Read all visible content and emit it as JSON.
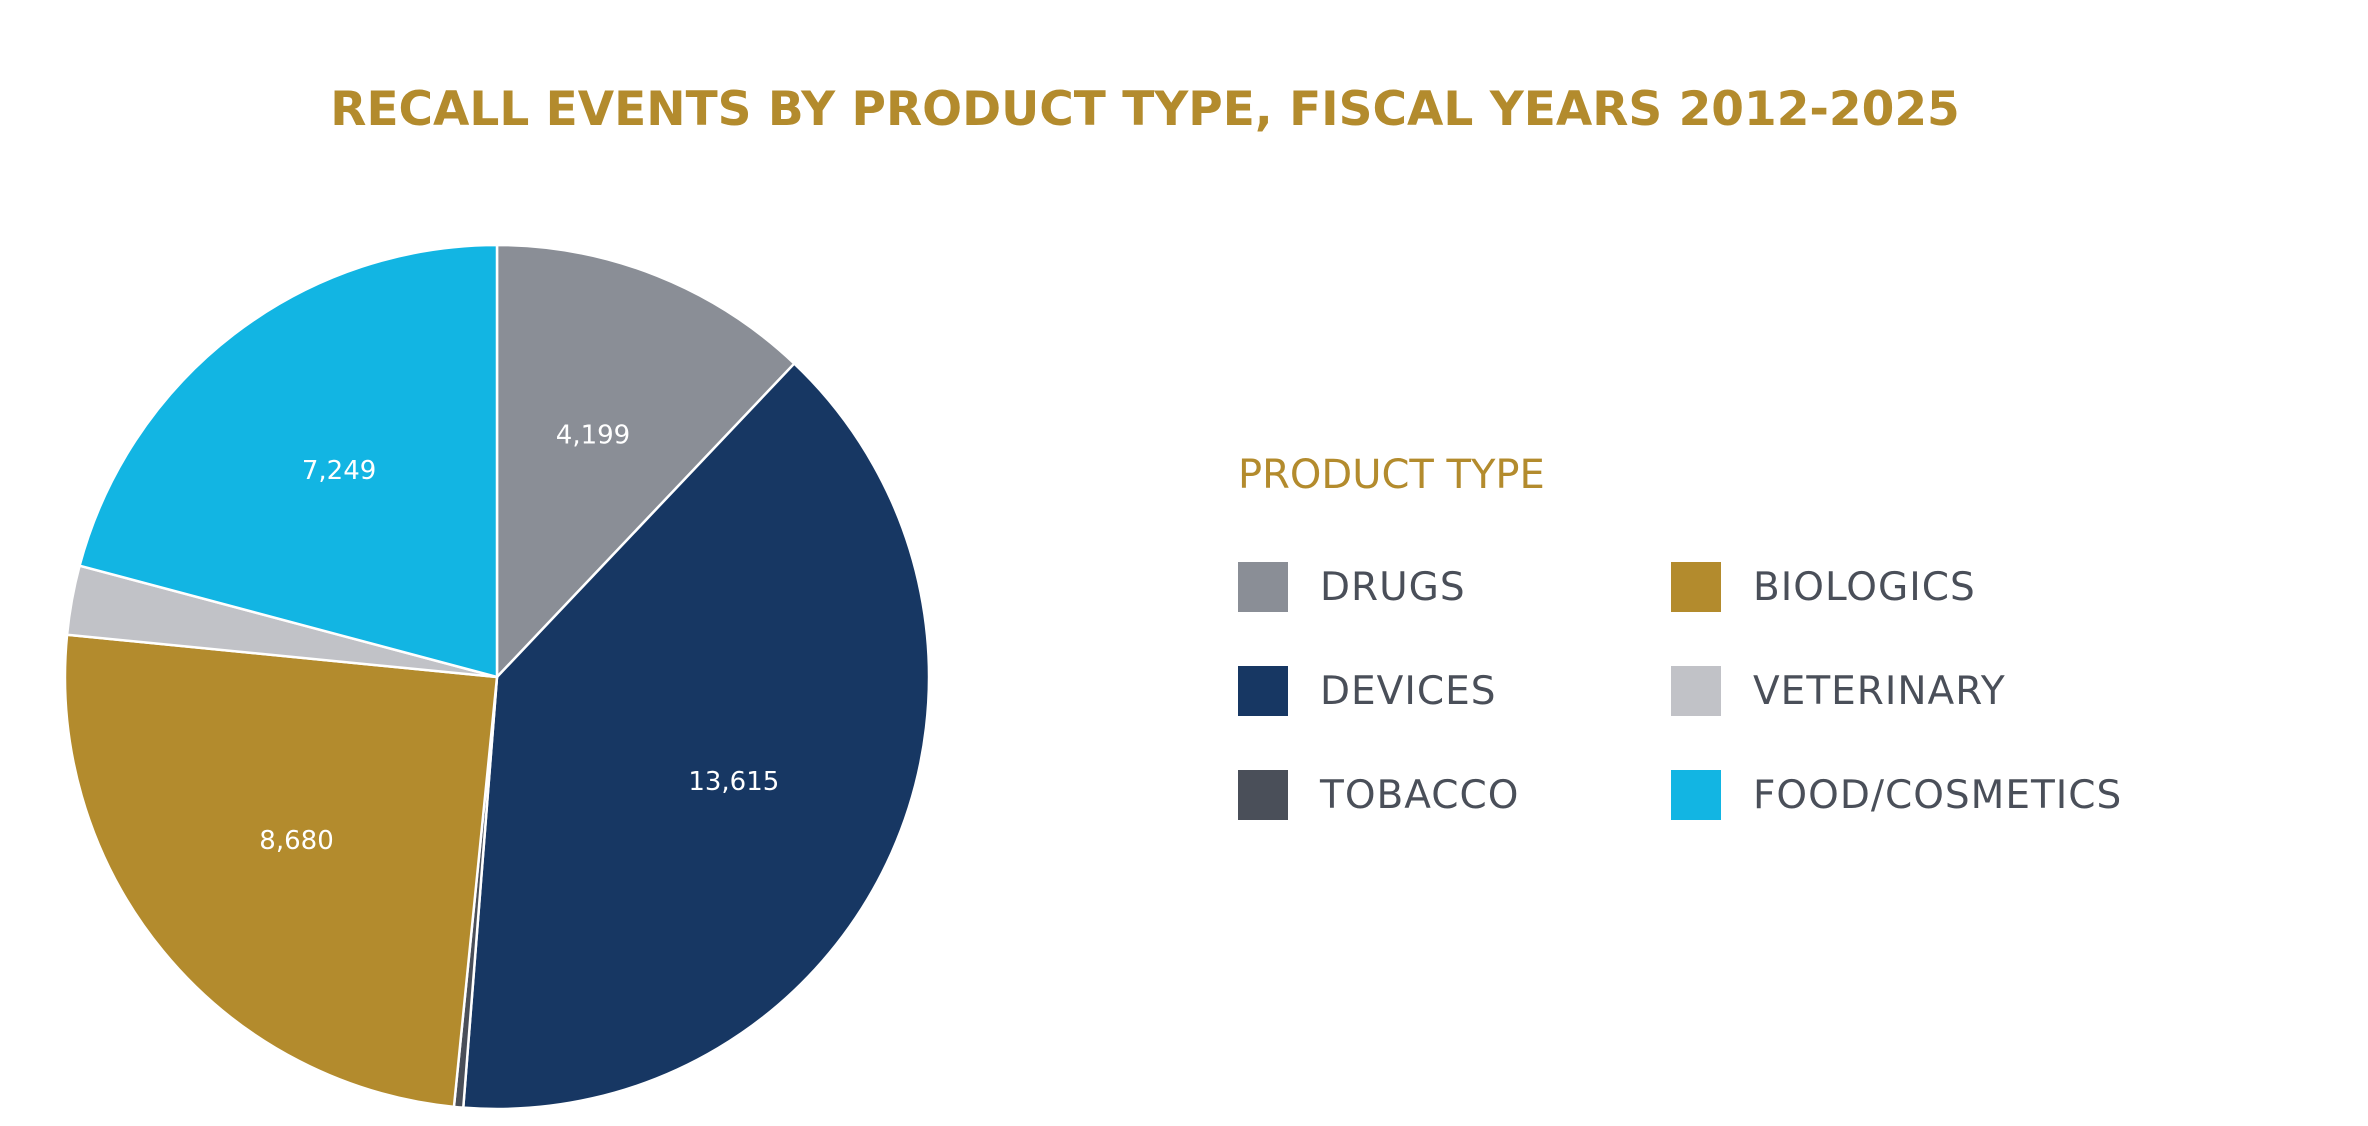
{
  "colors": {
    "title": "#b38b2d",
    "legend_title": "#b38b2d",
    "slice_border": "#ffffff"
  },
  "chart_data": {
    "type": "pie",
    "title": "RECALL EVENTS BY PRODUCT TYPE, FISCAL YEARS 2012-2025",
    "legend_title": "PRODUCT TYPE",
    "legend_position": "right",
    "slices": [
      {
        "name": "DRUGS",
        "value": 4199,
        "label": "4,199",
        "color": "#8a8e96"
      },
      {
        "name": "DEVICES",
        "value": 13615,
        "label": "13,615",
        "color": "#173763"
      },
      {
        "name": "TOBACCO",
        "value": 120,
        "label": "",
        "color": "#4a4f59"
      },
      {
        "name": "BIOLOGICS",
        "value": 8680,
        "label": "8,680",
        "color": "#b38b2d"
      },
      {
        "name": "VETERINARY",
        "value": 900,
        "label": "",
        "color": "#c1c2c7"
      },
      {
        "name": "FOOD/COSMETICS",
        "value": 7249,
        "label": "7,249",
        "color": "#12b5e3"
      }
    ],
    "legend_order": [
      "DRUGS",
      "BIOLOGICS",
      "DEVICES",
      "VETERINARY",
      "TOBACCO",
      "FOOD/COSMETICS"
    ]
  }
}
